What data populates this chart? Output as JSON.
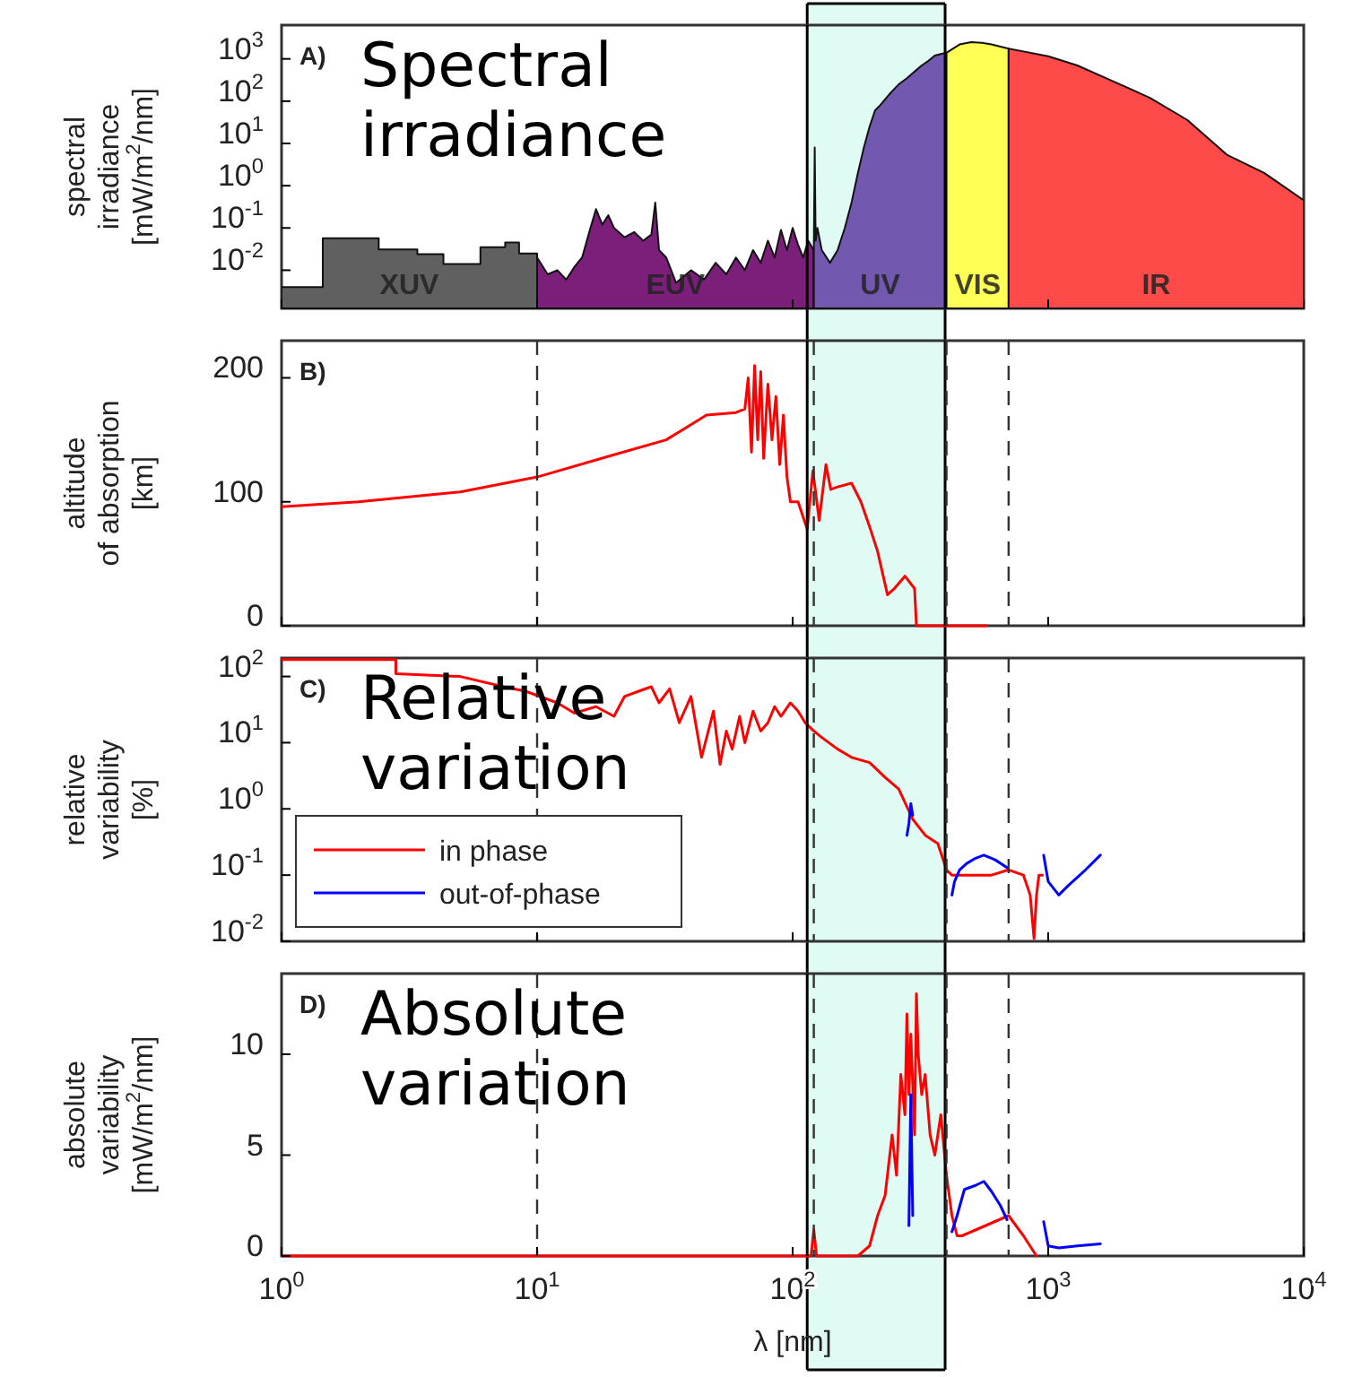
{
  "chart_data": [
    {
      "type": "area",
      "log": "xy",
      "legend": false,
      "tick_labels": "y",
      "ylabel": "spectral\nirradiance\n[mW/m$^{2}$/nm]",
      "annotations": [
        "A)",
        "Spectral\nirradiance"
      ],
      "xlim": [
        1,
        10000
      ],
      "xticks": [
        {
          "value": 1,
          "label": null
        },
        {
          "value": 10,
          "label": null
        },
        {
          "value": 100,
          "label": null
        },
        {
          "value": 1000,
          "label": null
        },
        {
          "value": 10000,
          "label": null
        }
      ],
      "ylim": [
        0.00125,
        6300
      ],
      "yticks": [
        {
          "value": 0.01,
          "label": "10$^{-2}$"
        },
        {
          "value": 0.1,
          "label": "10$^{-1}$"
        },
        {
          "value": 1,
          "label": "10$^{0}$"
        },
        {
          "value": 10,
          "label": "10$^{1}$"
        },
        {
          "value": 100,
          "label": "10$^{2}$"
        },
        {
          "value": 1000,
          "label": "10$^{3}$"
        }
      ],
      "bands": [
        {
          "axis": "x",
          "from": 114,
          "to": 395,
          "color": "#e0faf4"
        }
      ],
      "ref_lines": [
        {
          "axis": "x",
          "value": 114,
          "color": "#000000"
        },
        {
          "axis": "x",
          "value": 395,
          "color": "#000000"
        }
      ],
      "series": [
        {
          "name": "XUV",
          "color": "#606060",
          "x": [
            1,
            1.45,
            1.45,
            2.4,
            2.4,
            3.4,
            3.4,
            4.3,
            4.3,
            6,
            6,
            7.5,
            7.5,
            8.5,
            8.5,
            10
          ],
          "values": [
            0.004,
            0.004,
            0.057,
            0.057,
            0.031,
            0.031,
            0.024,
            0.024,
            0.014,
            0.014,
            0.035,
            0.035,
            0.045,
            0.045,
            0.025,
            0.025
          ]
        },
        {
          "name": "EUV",
          "color": "#7b1f7b",
          "x": [
            10,
            11,
            12,
            13,
            14,
            15,
            16,
            17,
            18,
            19,
            20,
            22,
            24,
            26,
            28,
            29,
            30,
            32,
            35,
            40,
            45,
            50,
            55,
            60,
            65,
            70,
            75,
            80,
            85,
            90,
            95,
            100,
            105,
            110,
            115,
            121
          ],
          "values": [
            0.02,
            0.008,
            0.01,
            0.006,
            0.012,
            0.02,
            0.08,
            0.28,
            0.12,
            0.2,
            0.1,
            0.06,
            0.08,
            0.05,
            0.07,
            0.4,
            0.03,
            0.02,
            0.005,
            0.01,
            0.006,
            0.015,
            0.008,
            0.02,
            0.01,
            0.03,
            0.015,
            0.05,
            0.02,
            0.09,
            0.03,
            0.1,
            0.04,
            0.02,
            0.05,
            0.03
          ]
        },
        {
          "name": "UV",
          "color": "#7358b0",
          "x": [
            121,
            122,
            123,
            125,
            130,
            140,
            150,
            160,
            170,
            180,
            190,
            200,
            210,
            220,
            240,
            260,
            280,
            300,
            320,
            340,
            360,
            380,
            400
          ],
          "values": [
            0.03,
            8,
            0.05,
            0.1,
            0.03,
            0.015,
            0.03,
            0.1,
            0.4,
            2,
            8,
            25,
            60,
            80,
            150,
            250,
            350,
            500,
            700,
            900,
            1200,
            1300,
            1400
          ]
        },
        {
          "name": "VIS",
          "color": "#ffff55",
          "x": [
            400,
            450,
            500,
            550,
            600,
            650,
            700
          ],
          "values": [
            1400,
            2200,
            2500,
            2400,
            2200,
            1950,
            1750
          ]
        },
        {
          "name": "IR",
          "color": "#ff4a4a",
          "x": [
            700,
            800,
            1000,
            1300,
            1600,
            2000,
            2500,
            3500,
            5000,
            7000,
            10000
          ],
          "values": [
            1750,
            1500,
            1150,
            700,
            400,
            220,
            120,
            36,
            5.4,
            2,
            0.45
          ]
        }
      ]
    },
    {
      "type": "line",
      "log": "x",
      "tick_labels": "y",
      "ylabel": "altitude\nof absorption\n[km]",
      "annotations": [
        "B)"
      ],
      "xlim": [
        1,
        10000
      ],
      "xticks": [
        {
          "value": 1,
          "label": null
        },
        {
          "value": 10,
          "label": null
        },
        {
          "value": 100,
          "label": null
        },
        {
          "value": 1000,
          "label": null
        },
        {
          "value": 10000,
          "label": null
        }
      ],
      "ylim": [
        0,
        230
      ],
      "yticks": [
        0,
        100,
        200
      ],
      "bands": [
        {
          "axis": "x",
          "from": 114,
          "to": 395,
          "color": "#e0faf4"
        }
      ],
      "ref_lines": [
        {
          "axis": "x",
          "value": 114,
          "color": "#000000"
        },
        {
          "axis": "x",
          "value": 395,
          "color": "#000000"
        },
        {
          "axis": "x",
          "value": 10,
          "line_style": "dashed"
        },
        {
          "axis": "x",
          "value": 121,
          "line_style": "dashed"
        },
        {
          "axis": "x",
          "value": 400,
          "line_style": "dashed"
        },
        {
          "axis": "x",
          "value": 700,
          "line_style": "dashed"
        }
      ],
      "series": [
        {
          "color": "#ff0000",
          "x": [
            1,
            2,
            5,
            10,
            20,
            32,
            46,
            60,
            65,
            67,
            69,
            71,
            73,
            75,
            77,
            80,
            83,
            86,
            89,
            92,
            95,
            98,
            105,
            114,
            120,
            127,
            135,
            141,
            150,
            170,
            185,
            200,
            215,
            235,
            250,
            275,
            300,
            305,
            575
          ],
          "values": [
            96,
            100,
            108,
            120,
            138,
            150,
            170,
            172,
            175,
            200,
            140,
            210,
            150,
            205,
            135,
            195,
            150,
            185,
            130,
            170,
            120,
            100,
            100,
            78,
            125,
            85,
            130,
            110,
            112,
            115,
            100,
            80,
            60,
            25,
            30,
            40,
            30,
            0,
            0
          ]
        }
      ]
    },
    {
      "type": "line",
      "log": "xy",
      "tick_labels": "y",
      "legend": "bottom left",
      "ylabel": "relative\nvariability\n[%]",
      "annotations": [
        "C)",
        "Relative\nvariation"
      ],
      "xlim": [
        1,
        10000
      ],
      "xticks": [
        {
          "value": 1,
          "label": null
        },
        {
          "value": 10,
          "label": null
        },
        {
          "value": 100,
          "label": null
        },
        {
          "value": 1000,
          "label": null
        },
        {
          "value": 10000,
          "label": null
        }
      ],
      "ylim": [
        0.01,
        190
      ],
      "yticks": [
        {
          "value": 0.01,
          "label": "10$^{-2}$"
        },
        {
          "value": 0.1,
          "label": "10$^{-1}$"
        },
        {
          "value": 1,
          "label": "10$^{0}$"
        },
        {
          "value": 10,
          "label": "10$^{1}$"
        },
        {
          "value": 100,
          "label": "10$^{2}$"
        }
      ],
      "bands": [
        {
          "axis": "x",
          "from": 114,
          "to": 395,
          "color": "#e0faf4"
        }
      ],
      "ref_lines": [
        {
          "axis": "x",
          "value": 114,
          "color": "#000000"
        },
        {
          "axis": "x",
          "value": 395,
          "color": "#000000"
        },
        {
          "axis": "x",
          "value": 10,
          "line_style": "dashed"
        },
        {
          "axis": "x",
          "value": 121,
          "line_style": "dashed"
        },
        {
          "axis": "x",
          "value": 400,
          "line_style": "dashed"
        },
        {
          "axis": "x",
          "value": 700,
          "line_style": "dashed"
        }
      ],
      "series": [
        {
          "name": "in phase",
          "color": "#ff0000",
          "x": [
            1,
            2.8,
            2.8,
            5,
            7.4,
            9,
            12,
            14,
            17,
            20,
            22,
            25,
            28,
            30,
            33,
            36,
            40,
            44,
            49,
            52,
            55,
            58,
            62,
            65,
            70,
            75,
            80,
            85,
            90,
            98,
            105,
            112,
            121,
            130,
            150,
            170,
            200,
            230,
            260,
            295,
            330,
            370,
            400,
            420,
            500,
            600,
            700,
            800,
            850,
            880,
            900,
            920,
            950
          ],
          "values": [
            180,
            180,
            110,
            100,
            70,
            60,
            40,
            28,
            35,
            25,
            50,
            60,
            70,
            40,
            65,
            20,
            50,
            6,
            30,
            4.7,
            15,
            8,
            25,
            10,
            30,
            15,
            20,
            35,
            25,
            40,
            30,
            20,
            15,
            12,
            8,
            6,
            5,
            3,
            2,
            0.7,
            0.4,
            0.3,
            0.12,
            0.1,
            0.1,
            0.1,
            0.12,
            0.1,
            0.05,
            0.011,
            0.05,
            0.1,
            0.1
          ]
        },
        {
          "name": "out-of-phase",
          "color": "#0000ff",
          "x": [
            280,
            285,
            290,
            295,
            300,
            420,
            430,
            450,
            480,
            520,
            560,
            620,
            690,
            800,
            960,
            1000,
            1100,
            1200,
            1400,
            1600
          ],
          "values": [
            0.4,
            0.6,
            1.2,
            0.8,
            null,
            0.05,
            0.08,
            0.12,
            0.15,
            0.18,
            0.2,
            0.17,
            0.13,
            null,
            0.2,
            0.08,
            0.05,
            0.07,
            0.12,
            0.2
          ]
        }
      ]
    },
    {
      "type": "line",
      "log": "x",
      "xlabel": "λ [nm]",
      "ylabel": "absolute\nvariability\n[mW/m$^{2}$/nm]",
      "annotations": [
        "D)",
        "Absolute\nvariation"
      ],
      "xlim": [
        1,
        10000
      ],
      "xticks": [
        {
          "value": 1,
          "label": "10$^{0}$"
        },
        {
          "value": 10,
          "label": "10$^{1}$"
        },
        {
          "value": 100,
          "label": "10$^{2}$"
        },
        {
          "value": 1000,
          "label": "10$^{3}$"
        },
        {
          "value": 10000,
          "label": "10$^{4}$"
        }
      ],
      "ylim": [
        0,
        14
      ],
      "yticks": [
        0,
        5,
        10
      ],
      "bands": [
        {
          "axis": "x",
          "from": 114,
          "to": 395,
          "color": "#e0faf4"
        }
      ],
      "ref_lines": [
        {
          "axis": "x",
          "value": 114,
          "color": "#000000"
        },
        {
          "axis": "x",
          "value": 395,
          "color": "#000000"
        },
        {
          "axis": "x",
          "value": 10,
          "line_style": "dashed"
        },
        {
          "axis": "x",
          "value": 121,
          "line_style": "dashed"
        },
        {
          "axis": "x",
          "value": 400,
          "line_style": "dashed"
        },
        {
          "axis": "x",
          "value": 700,
          "line_style": "dashed"
        }
      ],
      "series": [
        {
          "color": "#ff0000",
          "x": [
            1,
            10,
            100,
            118,
            121,
            124,
            180,
            200,
            215,
            230,
            245,
            255,
            265,
            275,
            280,
            285,
            290,
            300,
            305,
            310,
            320,
            330,
            345,
            360,
            380,
            400,
            420,
            440,
            460,
            700,
            800,
            900
          ],
          "values": [
            0,
            0,
            0,
            0,
            1.3,
            0,
            0,
            0.5,
            2,
            3,
            6,
            4,
            9,
            7,
            12,
            8,
            11,
            6,
            13,
            10,
            8,
            9,
            6,
            5,
            7,
            4,
            2,
            1,
            1,
            2,
            1,
            0
          ]
        },
        {
          "color": "#0000ff",
          "x": [
            285,
            290,
            295,
            300,
            420,
            440,
            470,
            520,
            560,
            600,
            650,
            690,
            700,
            960,
            1000,
            1100,
            1300,
            1600
          ],
          "values": [
            1.5,
            8,
            2,
            null,
            1.2,
            2,
            3.3,
            3.5,
            3.7,
            3.2,
            2.5,
            1.8,
            null,
            1.7,
            0.5,
            0.4,
            0.5,
            0.6
          ]
        }
      ]
    }
  ]
}
